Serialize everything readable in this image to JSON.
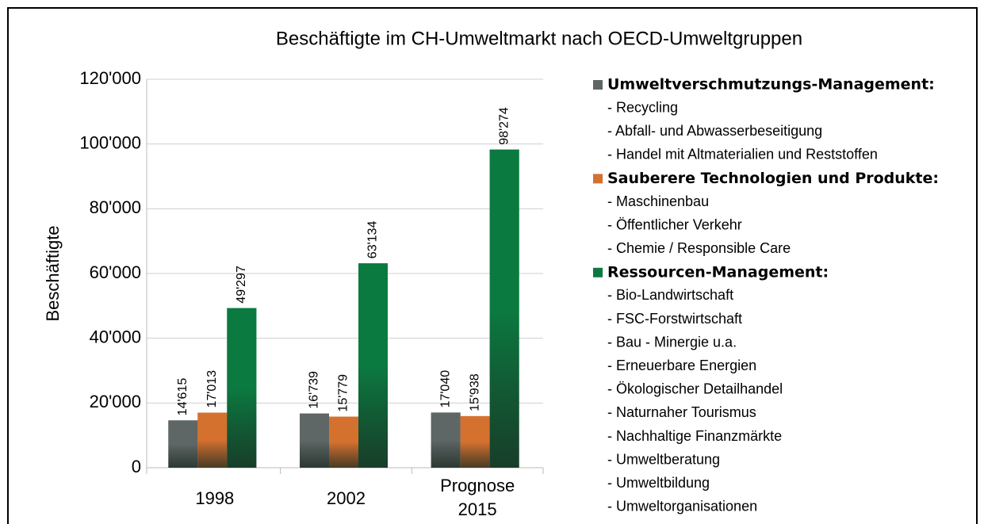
{
  "chart_data": {
    "type": "bar",
    "title": "Beschäftigte im CH-Umweltmarkt nach OECD-Umweltgruppen",
    "y_label": "Beschäftigte",
    "categories": [
      "1998",
      "2002",
      "Prognose 2015"
    ],
    "series": [
      {
        "name": "Umweltverschmutzungs-Management:",
        "color": "#5f6666",
        "values": [
          14615,
          16739,
          17040
        ],
        "value_labels": [
          "14'615",
          "16'739",
          "17'040"
        ],
        "items": [
          "- Recycling",
          "- Abfall- und Abwasserbeseitigung",
          "- Handel mit Altmaterialien und Reststoffen"
        ]
      },
      {
        "name": "Sauberere Technologien und Produkte:",
        "color": "#d4712f",
        "values": [
          17013,
          15779,
          15938
        ],
        "value_labels": [
          "17'013",
          "15'779",
          "15'938"
        ],
        "items": [
          "- Maschinenbau",
          "- Öffentlicher Verkehr",
          "- Chemie / Responsible Care"
        ]
      },
      {
        "name": "Ressourcen-Management:",
        "color": "#0b7a40",
        "values": [
          49297,
          63134,
          98274
        ],
        "value_labels": [
          "49'297",
          "63'134",
          "98'274"
        ],
        "items": [
          "- Bio-Landwirtschaft",
          "- FSC-Forstwirtschaft",
          "- Bau - Minergie u.a.",
          "- Erneuerbare Energien",
          "- Ökologischer Detailhandel",
          "- Naturnaher Tourismus",
          "- Nachhaltige Finanzmärkte",
          "- Umweltberatung",
          "- Umweltbildung",
          "- Umweltorganisationen"
        ]
      }
    ],
    "ylim": [
      0,
      120000
    ],
    "yticks": [
      0,
      {
        "value": 20000,
        "label": "20'000"
      },
      {
        "value": 40000,
        "label": "40'000"
      },
      {
        "value": 60000,
        "label": "60'000"
      },
      {
        "value": 80000,
        "label": "80'000"
      },
      {
        "value": 100000,
        "label": "100'000"
      },
      {
        "value": 120000,
        "label": "120'000"
      }
    ],
    "grid": true
  }
}
